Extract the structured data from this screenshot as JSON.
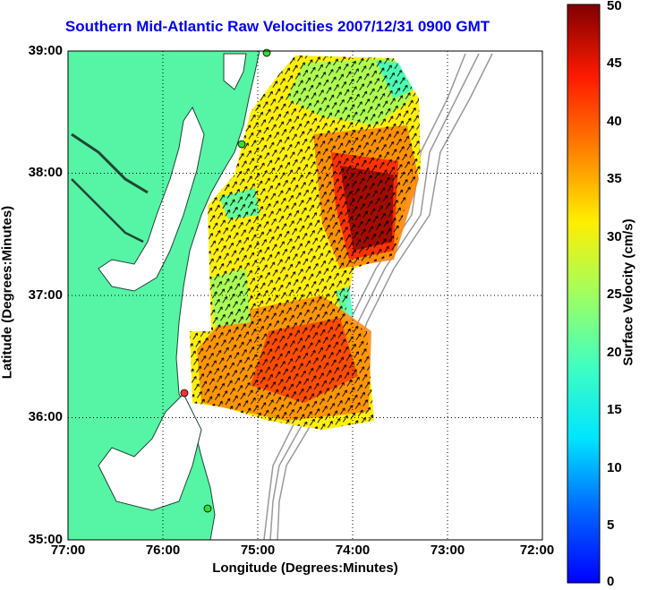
{
  "title": "Southern Mid-Atlantic Raw Velocities 2007/12/31 0900 GMT",
  "x_axis": {
    "label": "Longitude (Degrees:Minutes)",
    "ticks": [
      "77:00",
      "76:00",
      "75:00",
      "74:00",
      "73:00",
      "72:00"
    ]
  },
  "y_axis": {
    "label": "Latitude (Degrees:Minutes)",
    "ticks": [
      "39:00",
      "38:00",
      "37:00",
      "36:00",
      "35:00"
    ]
  },
  "colorbar": {
    "label": "Surface Velocity (cm/s)",
    "ticks": [
      "50",
      "45",
      "40",
      "35",
      "30",
      "25",
      "20",
      "15",
      "10",
      "5",
      "0"
    ],
    "range": [
      0,
      50
    ],
    "colormap": "jet"
  },
  "map": {
    "land_color": "#55f5a5",
    "water_color": "#ffffff",
    "grid": "dotted",
    "bathymetry_color": "#999999",
    "station_markers": [
      {
        "color": "#33dd33"
      },
      {
        "color": "#33dd33"
      },
      {
        "color": "#ff3333"
      },
      {
        "color": "#33dd33"
      }
    ]
  }
}
